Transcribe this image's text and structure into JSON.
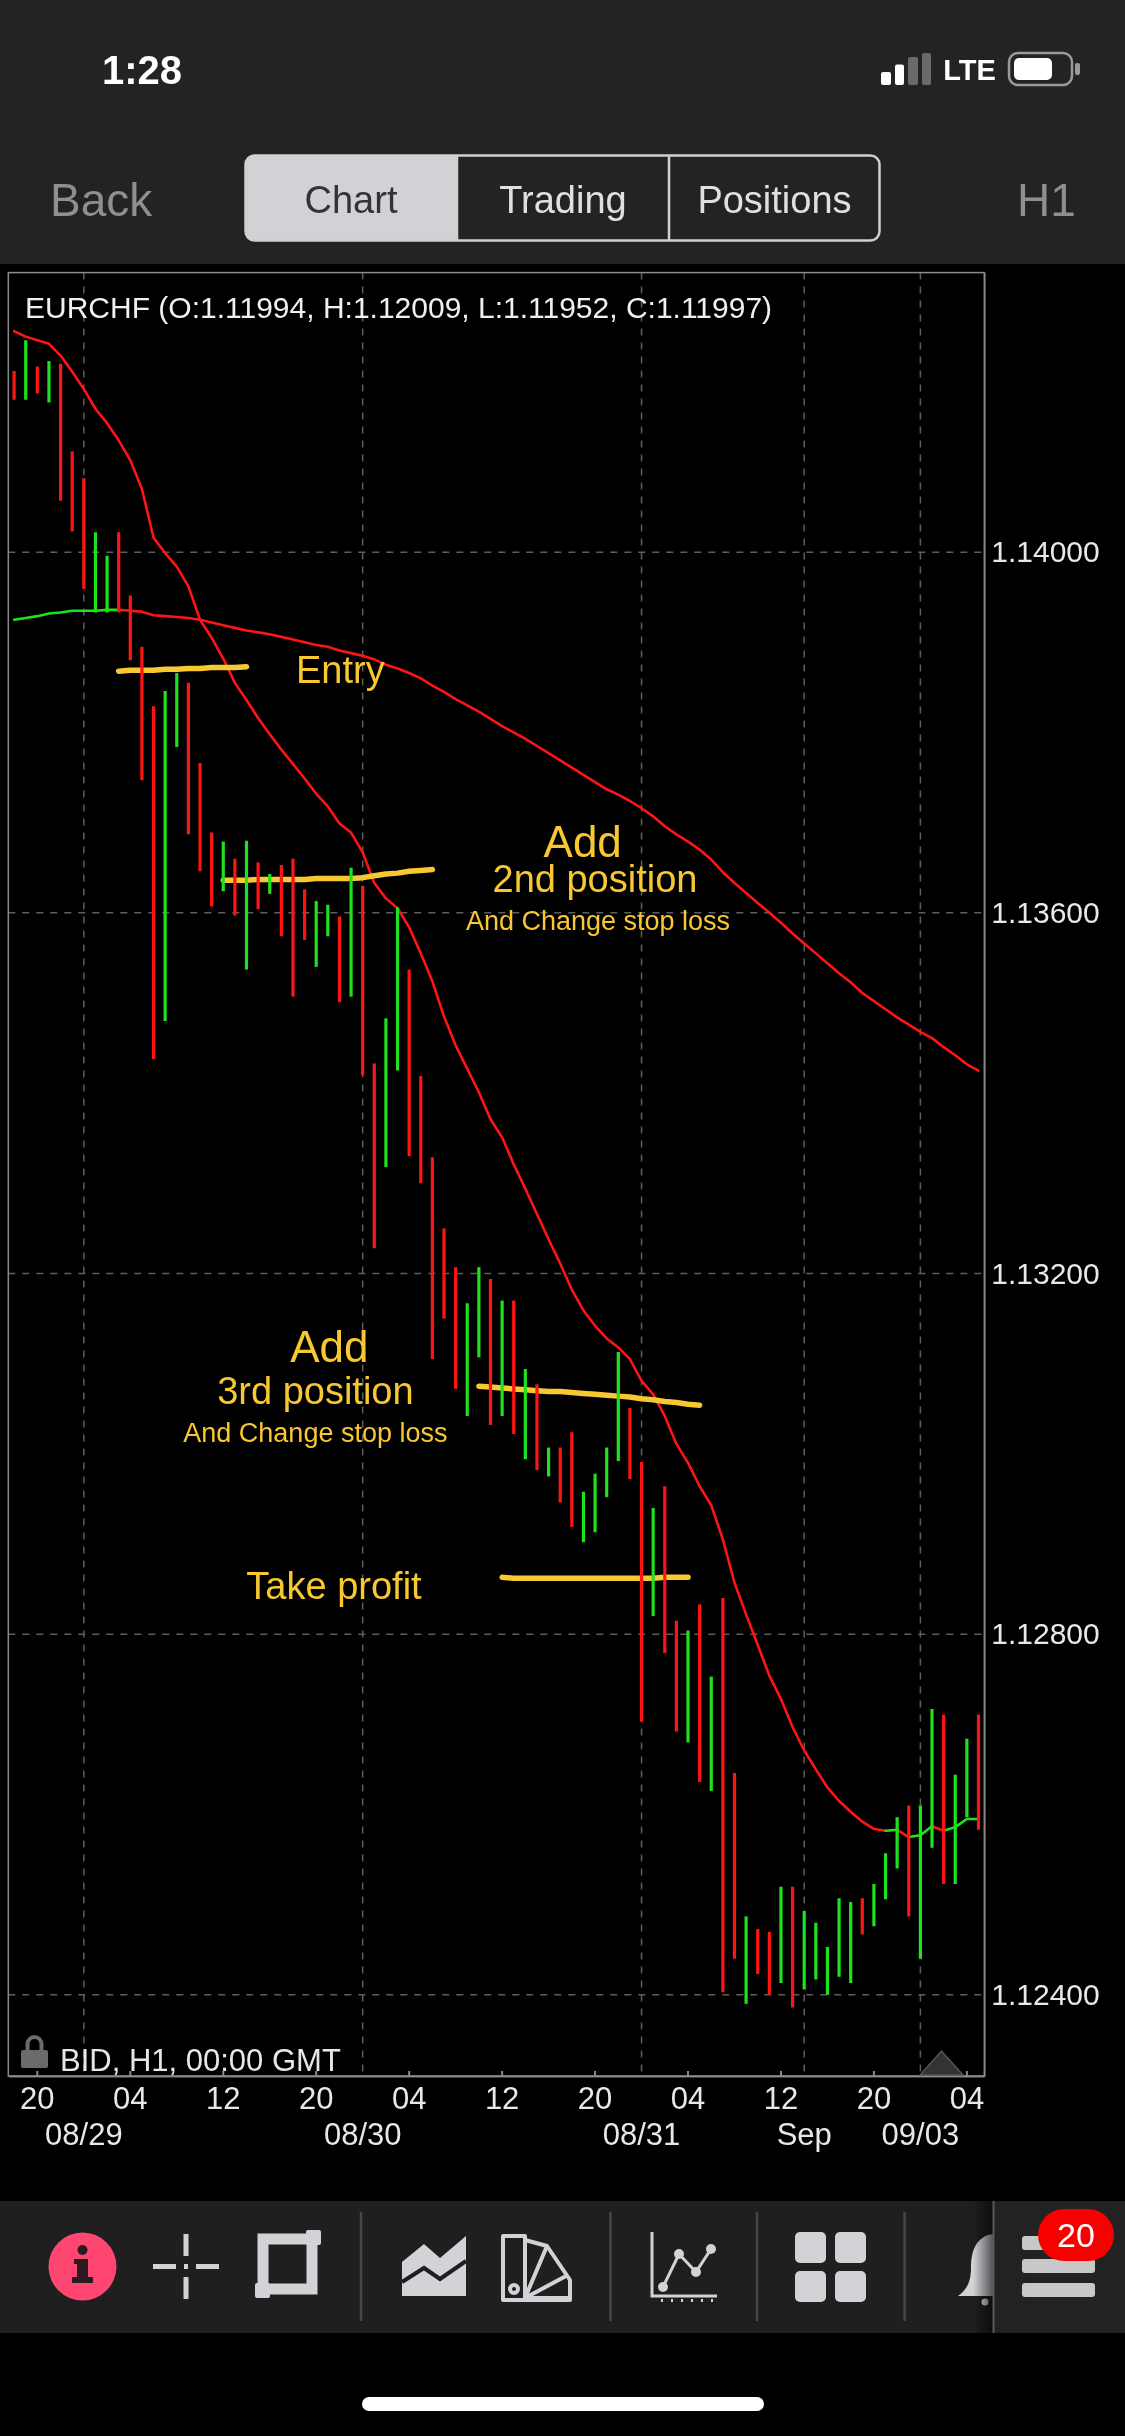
{
  "chart_data": {
    "type": "candlestick",
    "title": "EURCHF (O:1.11994, H:1.12009, L:1.11952, C:1.11997)",
    "categories": [
      null,
      null,
      "20",
      null,
      null,
      null,
      "08/29",
      null,
      null,
      null,
      "04",
      null,
      null,
      null,
      null,
      null,
      null,
      null,
      "12",
      null,
      null,
      null,
      null,
      null,
      null,
      null,
      "20",
      null,
      null,
      null,
      "08/30",
      null,
      null,
      null,
      "04",
      null,
      null,
      null,
      null,
      null,
      null,
      null,
      "12",
      null,
      null,
      null,
      null,
      null,
      null,
      null,
      "20",
      null,
      null,
      null,
      "08/31",
      null,
      null,
      null,
      "04",
      null,
      null,
      null,
      null,
      null,
      null,
      null,
      "12",
      null,
      "Sep",
      null,
      null,
      null,
      null,
      null,
      "20",
      null,
      null,
      null,
      "09/03",
      null,
      null,
      null,
      "04",
      null
    ],
    "ohlc": [
      [
        1.14201,
        1.14201,
        1.14169,
        1.14169
      ],
      [
        1.14169,
        1.14235,
        1.14169,
        1.14235
      ],
      [
        1.14206,
        1.14206,
        1.14176,
        1.14176
      ],
      [
        1.14166,
        1.14212,
        1.14166,
        1.14212
      ],
      [
        1.14209,
        1.14209,
        1.14057,
        1.14057
      ],
      [
        1.14112,
        1.14112,
        1.14023,
        1.14023
      ],
      [
        1.14082,
        1.14082,
        1.13959,
        1.13959
      ],
      [
        1.13933,
        1.14022,
        1.13933,
        1.14022
      ],
      [
        1.13933,
        1.13996,
        1.13933,
        1.13996
      ],
      [
        1.14022,
        1.14022,
        1.13933,
        1.13933
      ],
      [
        1.13952,
        1.13952,
        1.1388,
        1.1388
      ],
      [
        1.13895,
        1.13895,
        1.13747,
        1.13747
      ],
      [
        1.13829,
        1.13829,
        1.13438,
        1.13438
      ],
      [
        1.1348,
        1.13846,
        1.1348,
        1.13846
      ],
      [
        1.13784,
        1.13866,
        1.13784,
        1.13866
      ],
      [
        1.13855,
        1.13855,
        1.13687,
        1.13687
      ],
      [
        1.13766,
        1.13766,
        1.13646,
        1.13646
      ],
      [
        1.13689,
        1.13689,
        1.13607,
        1.13607
      ],
      [
        1.13624,
        1.13679,
        1.13624,
        1.13679
      ],
      [
        1.1366,
        1.1366,
        1.13597,
        1.13597
      ],
      [
        1.13537,
        1.1368,
        1.13537,
        1.1368
      ],
      [
        1.13656,
        1.13656,
        1.13604,
        1.13604
      ],
      [
        1.13621,
        1.13643,
        1.13621,
        1.13643
      ],
      [
        1.13653,
        1.13653,
        1.13574,
        1.13574
      ],
      [
        1.1366,
        1.1366,
        1.13507,
        1.13507
      ],
      [
        1.13626,
        1.13626,
        1.1357,
        1.1357
      ],
      [
        1.1354,
        1.13613,
        1.1354,
        1.13613
      ],
      [
        1.13574,
        1.13609,
        1.13574,
        1.13609
      ],
      [
        1.13596,
        1.13596,
        1.13501,
        1.13501
      ],
      [
        1.13507,
        1.1365,
        1.13507,
        1.1365
      ],
      [
        1.1363,
        1.1363,
        1.1342,
        1.1342
      ],
      [
        1.13433,
        1.13433,
        1.13228,
        1.13228
      ],
      [
        1.13318,
        1.13483,
        1.13318,
        1.13483
      ],
      [
        1.13425,
        1.13606,
        1.13425,
        1.13606
      ],
      [
        1.13537,
        1.13537,
        1.1333,
        1.1333
      ],
      [
        1.13419,
        1.13419,
        1.133,
        1.133
      ],
      [
        1.13329,
        1.13329,
        1.13105,
        1.13105
      ],
      [
        1.1325,
        1.1325,
        1.1315,
        1.1315
      ],
      [
        1.13207,
        1.13207,
        1.13072,
        1.13072
      ],
      [
        1.13042,
        1.13167,
        1.13042,
        1.13167
      ],
      [
        1.13107,
        1.13207,
        1.13107,
        1.13207
      ],
      [
        1.13194,
        1.13194,
        1.13032,
        1.13032
      ],
      [
        1.13042,
        1.1317,
        1.13042,
        1.1317
      ],
      [
        1.1317,
        1.1317,
        1.13022,
        1.13022
      ],
      [
        1.12994,
        1.13094,
        1.12994,
        1.13094
      ],
      [
        1.13077,
        1.13077,
        1.12982,
        1.12982
      ],
      [
        1.12975,
        1.13007,
        1.12975,
        1.13007
      ],
      [
        1.13007,
        1.13007,
        1.12946,
        1.12946
      ],
      [
        1.13024,
        1.13024,
        1.12919,
        1.12919
      ],
      [
        1.12902,
        1.12958,
        1.12902,
        1.12958
      ],
      [
        1.12913,
        1.12978,
        1.12913,
        1.12978
      ],
      [
        1.12952,
        1.13007,
        1.12952,
        1.13007
      ],
      [
        1.12992,
        1.13113,
        1.12992,
        1.13113
      ],
      [
        1.13051,
        1.13051,
        1.12972,
        1.12972
      ],
      [
        1.12991,
        1.12991,
        1.12703,
        1.12703
      ],
      [
        1.1282,
        1.1294,
        1.1282,
        1.1294
      ],
      [
        1.12964,
        1.12964,
        1.12779,
        1.12779
      ],
      [
        1.12815,
        1.12815,
        1.12692,
        1.12692
      ],
      [
        1.1268,
        1.12804,
        1.1268,
        1.12804
      ],
      [
        1.12833,
        1.12833,
        1.12636,
        1.12636
      ],
      [
        1.12626,
        1.12753,
        1.12626,
        1.12753
      ],
      [
        1.1284,
        1.1284,
        1.12403,
        1.12403
      ],
      [
        1.12646,
        1.12646,
        1.1244,
        1.1244
      ],
      [
        1.1239,
        1.12487,
        1.1239,
        1.12487
      ],
      [
        1.12473,
        1.12473,
        1.12423,
        1.12423
      ],
      [
        1.1247,
        1.1247,
        1.124,
        1.124
      ],
      [
        1.12413,
        1.1252,
        1.12413,
        1.1252
      ],
      [
        1.1252,
        1.1252,
        1.12386,
        1.12386
      ],
      [
        1.12406,
        1.12493,
        1.12406,
        1.12493
      ],
      [
        1.12417,
        1.1248,
        1.12417,
        1.1248
      ],
      [
        1.124,
        1.12453,
        1.124,
        1.12453
      ],
      [
        1.1242,
        1.12507,
        1.1242,
        1.12507
      ],
      [
        1.12413,
        1.12503,
        1.12413,
        1.12503
      ],
      [
        1.12507,
        1.12507,
        1.12467,
        1.12467
      ],
      [
        1.12476,
        1.12523,
        1.12476,
        1.12523
      ],
      [
        1.12506,
        1.12557,
        1.12506,
        1.12557
      ],
      [
        1.1254,
        1.12597,
        1.1254,
        1.12597
      ],
      [
        1.1261,
        1.1261,
        1.12487,
        1.12487
      ],
      [
        1.1244,
        1.1261,
        1.1244,
        1.1261
      ],
      [
        1.12563,
        1.12717,
        1.12563,
        1.12717
      ],
      [
        1.12711,
        1.12711,
        1.12523,
        1.12523
      ],
      [
        1.12523,
        1.12644,
        1.12523,
        1.12644
      ],
      [
        1.12597,
        1.12684,
        1.12597,
        1.12684
      ],
      [
        1.12711,
        1.12711,
        1.12583,
        1.12583
      ]
    ],
    "colors": [
      "#ff1414",
      "#1ee21e",
      "#ff1414",
      "#1ee21e",
      "#ff1414",
      "#ff1414",
      "#ff1414",
      "#1ee21e",
      "#1ee21e",
      "#ff1414",
      "#ff1414",
      "#ff1414",
      "#ff1414",
      "#1ee21e",
      "#1ee21e",
      "#ff1414",
      "#ff1414",
      "#ff1414",
      "#1ee21e",
      "#ff1414",
      "#1ee21e",
      "#ff1414",
      "#1ee21e",
      "#ff1414",
      "#ff1414",
      "#ff1414",
      "#1ee21e",
      "#1ee21e",
      "#ff1414",
      "#1ee21e",
      "#ff1414",
      "#ff1414",
      "#1ee21e",
      "#1ee21e",
      "#ff1414",
      "#ff1414",
      "#ff1414",
      "#ff1414",
      "#ff1414",
      "#1ee21e",
      "#1ee21e",
      "#ff1414",
      "#1ee21e",
      "#ff1414",
      "#1ee21e",
      "#ff1414",
      "#1ee21e",
      "#ff1414",
      "#ff1414",
      "#1ee21e",
      "#1ee21e",
      "#1ee21e",
      "#1ee21e",
      "#ff1414",
      "#ff1414",
      "#1ee21e",
      "#ff1414",
      "#ff1414",
      "#1ee21e",
      "#ff1414",
      "#1ee21e",
      "#ff1414",
      "#ff1414",
      "#1ee21e",
      "#ff1414",
      "#ff1414",
      "#1ee21e",
      "#ff1414",
      "#1ee21e",
      "#1ee21e",
      "#1ee21e",
      "#1ee21e",
      "#1ee21e",
      "#ff1414",
      "#1ee21e",
      "#1ee21e",
      "#1ee21e",
      "#ff1414",
      "#1ee21e",
      "#1ee21e",
      "#ff1414",
      "#1ee21e",
      "#1ee21e",
      "#ff1414"
    ],
    "series": [
      {
        "type": "line",
        "color": "#ff1414",
        "values": [
          1.14245,
          1.14239,
          1.14235,
          1.14231,
          1.14218,
          1.142,
          1.14181,
          1.14159,
          1.14143,
          1.14124,
          1.14102,
          1.1407,
          1.14016,
          1.13999,
          1.13984,
          1.13962,
          1.13925,
          1.13905,
          1.13882,
          1.13855,
          1.13836,
          1.13816,
          1.13798,
          1.13781,
          1.13765,
          1.13749,
          1.13732,
          1.13718,
          1.13699,
          1.13689,
          1.13667,
          1.13633,
          1.13616,
          1.13605,
          1.13584,
          1.13555,
          1.13524,
          1.13485,
          1.13453,
          1.13427,
          1.13401,
          1.13371,
          1.13351,
          1.13321,
          1.13294,
          1.13266,
          1.13238,
          1.13211,
          1.13182,
          1.13159,
          1.13142,
          1.13128,
          1.13118,
          1.13105,
          1.13081,
          1.13066,
          1.13042,
          1.13011,
          1.1299,
          1.12964,
          1.12943,
          1.12905,
          1.12857,
          1.12822,
          1.12788,
          1.12754,
          1.12728,
          1.12697,
          1.12671,
          1.1265,
          1.1263,
          1.12615,
          1.12603,
          1.12592,
          1.12584,
          1.12582,
          null,
          null,
          null,
          null,
          null,
          null,
          null,
          null
        ]
      },
      {
        "type": "line",
        "color": "#1ee21e",
        "values": [
          null,
          null,
          null,
          null,
          null,
          null,
          null,
          null,
          null,
          null,
          null,
          null,
          null,
          null,
          null,
          null,
          null,
          null,
          null,
          null,
          null,
          null,
          null,
          null,
          null,
          null,
          null,
          null,
          null,
          null,
          null,
          null,
          null,
          null,
          null,
          null,
          null,
          null,
          null,
          null,
          null,
          null,
          null,
          null,
          null,
          null,
          null,
          null,
          null,
          null,
          null,
          null,
          null,
          null,
          null,
          null,
          null,
          null,
          null,
          null,
          null,
          null,
          null,
          null,
          null,
          null,
          null,
          null,
          null,
          null,
          null,
          null,
          null,
          null,
          null,
          1.12582,
          1.12583,
          null,
          null,
          null,
          null,
          null,
          null,
          null
        ]
      },
      {
        "type": "line",
        "color": "#ff1414",
        "values": [
          null,
          null,
          null,
          null,
          null,
          null,
          null,
          null,
          null,
          null,
          null,
          null,
          null,
          null,
          null,
          null,
          null,
          null,
          null,
          null,
          null,
          null,
          null,
          null,
          null,
          null,
          null,
          null,
          null,
          null,
          null,
          null,
          null,
          null,
          null,
          null,
          null,
          null,
          null,
          null,
          null,
          null,
          null,
          null,
          null,
          null,
          null,
          null,
          null,
          null,
          null,
          null,
          null,
          null,
          null,
          null,
          null,
          null,
          null,
          null,
          null,
          null,
          null,
          null,
          null,
          null,
          null,
          null,
          null,
          null,
          null,
          null,
          null,
          null,
          null,
          null,
          1.12583,
          1.12575,
          null,
          null,
          null,
          null,
          null,
          null
        ]
      },
      {
        "type": "line",
        "color": "#1ee21e",
        "values": [
          null,
          null,
          null,
          null,
          null,
          null,
          null,
          null,
          null,
          null,
          null,
          null,
          null,
          null,
          null,
          null,
          null,
          null,
          null,
          null,
          null,
          null,
          null,
          null,
          null,
          null,
          null,
          null,
          null,
          null,
          null,
          null,
          null,
          null,
          null,
          null,
          null,
          null,
          null,
          null,
          null,
          null,
          null,
          null,
          null,
          null,
          null,
          null,
          null,
          null,
          null,
          null,
          null,
          null,
          null,
          null,
          null,
          null,
          null,
          null,
          null,
          null,
          null,
          null,
          null,
          null,
          null,
          null,
          null,
          null,
          null,
          null,
          null,
          null,
          null,
          null,
          null,
          1.12575,
          1.12577,
          1.12587,
          null,
          null,
          null,
          null
        ]
      },
      {
        "type": "line",
        "color": "#ff1414",
        "values": [
          null,
          null,
          null,
          null,
          null,
          null,
          null,
          null,
          null,
          null,
          null,
          null,
          null,
          null,
          null,
          null,
          null,
          null,
          null,
          null,
          null,
          null,
          null,
          null,
          null,
          null,
          null,
          null,
          null,
          null,
          null,
          null,
          null,
          null,
          null,
          null,
          null,
          null,
          null,
          null,
          null,
          null,
          null,
          null,
          null,
          null,
          null,
          null,
          null,
          null,
          null,
          null,
          null,
          null,
          null,
          null,
          null,
          null,
          null,
          null,
          null,
          null,
          null,
          null,
          null,
          null,
          null,
          null,
          null,
          null,
          null,
          null,
          null,
          null,
          null,
          null,
          null,
          null,
          null,
          1.12587,
          1.12582,
          null,
          null,
          null
        ]
      },
      {
        "type": "line",
        "color": "#1ee21e",
        "values": [
          null,
          null,
          null,
          null,
          null,
          null,
          null,
          null,
          null,
          null,
          null,
          null,
          null,
          null,
          null,
          null,
          null,
          null,
          null,
          null,
          null,
          null,
          null,
          null,
          null,
          null,
          null,
          null,
          null,
          null,
          null,
          null,
          null,
          null,
          null,
          null,
          null,
          null,
          null,
          null,
          null,
          null,
          null,
          null,
          null,
          null,
          null,
          null,
          null,
          null,
          null,
          null,
          null,
          null,
          null,
          null,
          null,
          null,
          null,
          null,
          null,
          null,
          null,
          null,
          null,
          null,
          null,
          null,
          null,
          null,
          null,
          null,
          null,
          null,
          null,
          null,
          null,
          null,
          null,
          null,
          1.12582,
          1.12586,
          1.12595,
          1.12595
        ]
      },
      {
        "type": "line",
        "color": "#1ee21e",
        "values": [
          1.13925,
          1.13927,
          1.13929,
          1.13932,
          1.13933,
          1.13935,
          1.13935,
          1.13935,
          1.13936,
          1.13936,
          null,
          null,
          null,
          null,
          null,
          null,
          null,
          null,
          null,
          null,
          null,
          null,
          null,
          null,
          null,
          null,
          null,
          null,
          null,
          null,
          null,
          null,
          null,
          null,
          null,
          null,
          null,
          null,
          null,
          null,
          null,
          null,
          null,
          null,
          null,
          null,
          null,
          null,
          null,
          null,
          null,
          null,
          null,
          null,
          null,
          null,
          null,
          null,
          null,
          null,
          null,
          null,
          null,
          null,
          null,
          null,
          null,
          null,
          null,
          null,
          null,
          null,
          null,
          null,
          null,
          null,
          null,
          null,
          null,
          null,
          null,
          null,
          null,
          null
        ]
      },
      {
        "type": "line",
        "color": "#ff1414",
        "values": [
          null,
          null,
          null,
          null,
          null,
          null,
          null,
          null,
          null,
          1.13936,
          1.13935,
          1.13934,
          1.1393,
          1.13929,
          1.13928,
          1.13927,
          1.13925,
          1.13922,
          1.13919,
          1.13916,
          1.13913,
          1.13911,
          1.13909,
          1.13906,
          1.13903,
          1.139,
          1.13897,
          1.13895,
          1.13891,
          1.13888,
          1.13885,
          1.13881,
          1.13875,
          1.13871,
          1.13866,
          1.1386,
          1.13852,
          1.13845,
          1.13837,
          1.1383,
          1.13823,
          1.13815,
          1.13807,
          1.138,
          1.13793,
          1.13785,
          1.13777,
          1.13769,
          1.13761,
          1.13753,
          1.13745,
          1.13737,
          1.13731,
          1.13724,
          1.13716,
          1.13707,
          1.13696,
          1.13687,
          1.13679,
          1.1367,
          1.13659,
          1.13645,
          1.13633,
          1.13622,
          1.13611,
          1.136,
          1.13589,
          1.13577,
          1.13566,
          1.13555,
          1.13544,
          1.13533,
          1.13523,
          1.13511,
          1.13502,
          1.13493,
          1.13484,
          1.13476,
          1.13468,
          1.13461,
          1.13451,
          1.13442,
          1.13432,
          1.13425
        ]
      },
      {
        "type": "line",
        "color": "#f8c830",
        "values": [
          null,
          null,
          null,
          null,
          null,
          null,
          null,
          null,
          null,
          1.13868,
          1.13869,
          1.13869,
          1.13869,
          1.1387,
          1.1387,
          1.13871,
          1.13871,
          1.13872,
          1.13872,
          1.13872,
          1.13873,
          null,
          null,
          null,
          null,
          null,
          null,
          null,
          null,
          null,
          null,
          null,
          null,
          null,
          null,
          null,
          null,
          null,
          null,
          null,
          null,
          null,
          null,
          null,
          null,
          null,
          null,
          null,
          null,
          null,
          null,
          null,
          null,
          null,
          null,
          null,
          null,
          null,
          null,
          null,
          null,
          null,
          null,
          null,
          null,
          null,
          null,
          null,
          null,
          null,
          null,
          null,
          null,
          null,
          null,
          null,
          null,
          null,
          null,
          null,
          null,
          null,
          null,
          null
        ]
      },
      {
        "type": "line",
        "color": "#f8c830",
        "values": [
          null,
          null,
          null,
          null,
          null,
          null,
          null,
          null,
          null,
          null,
          null,
          null,
          null,
          null,
          null,
          null,
          null,
          null,
          1.13636,
          1.13636,
          1.13636,
          1.13637,
          1.13637,
          1.13637,
          1.13637,
          1.13637,
          1.13638,
          1.13638,
          1.13638,
          1.13638,
          1.13639,
          1.13641,
          1.13643,
          1.13644,
          1.13646,
          1.13647,
          1.13648,
          null,
          null,
          null,
          null,
          null,
          null,
          null,
          null,
          null,
          null,
          null,
          null,
          null,
          null,
          null,
          null,
          null,
          null,
          null,
          null,
          null,
          null,
          null,
          null,
          null,
          null,
          null,
          null,
          null,
          null,
          null,
          null,
          null,
          null,
          null,
          null,
          null,
          null,
          null,
          null,
          null,
          null,
          null,
          null,
          null,
          null,
          null
        ]
      },
      {
        "type": "line",
        "color": "#f8c830",
        "values": [
          null,
          null,
          null,
          null,
          null,
          null,
          null,
          null,
          null,
          null,
          null,
          null,
          null,
          null,
          null,
          null,
          null,
          null,
          null,
          null,
          null,
          null,
          null,
          null,
          null,
          null,
          null,
          null,
          null,
          null,
          null,
          null,
          null,
          null,
          null,
          null,
          null,
          null,
          null,
          null,
          1.13075,
          1.13074,
          1.13073,
          1.13072,
          1.13071,
          1.1307,
          1.13069,
          1.13069,
          1.13068,
          1.13067,
          1.13066,
          1.13065,
          1.13064,
          1.13063,
          1.13061,
          1.1306,
          1.13058,
          1.13057,
          1.13055,
          1.13054,
          null,
          null,
          null,
          null,
          null,
          null,
          null,
          null,
          null,
          null,
          null,
          null,
          null,
          null,
          null,
          null,
          null,
          null,
          null,
          null,
          null,
          null,
          null,
          null
        ]
      },
      {
        "type": "line",
        "color": "#f8c830",
        "values": [
          null,
          null,
          null,
          null,
          null,
          null,
          null,
          null,
          null,
          null,
          null,
          null,
          null,
          null,
          null,
          null,
          null,
          null,
          null,
          null,
          null,
          null,
          null,
          null,
          null,
          null,
          null,
          null,
          null,
          null,
          null,
          null,
          null,
          null,
          null,
          null,
          null,
          null,
          null,
          null,
          null,
          null,
          1.12863,
          1.12862,
          1.12862,
          1.12862,
          1.12862,
          1.12862,
          1.12862,
          1.12862,
          1.12862,
          1.12862,
          1.12862,
          1.12862,
          1.12862,
          1.12862,
          1.12863,
          1.12863,
          1.12863,
          null,
          null,
          null,
          null,
          null,
          null,
          null,
          null,
          null,
          null,
          null,
          null,
          null,
          null,
          null,
          null,
          null,
          null,
          null,
          null,
          null,
          null,
          null,
          null,
          null
        ]
      }
    ],
    "ylim": [
      1.1231,
      1.1431
    ],
    "yticks": [
      {
        "value": 1.124,
        "label": "1.12400"
      },
      {
        "value": 1.128,
        "label": "1.12800"
      },
      {
        "value": 1.132,
        "label": "1.13200"
      },
      {
        "value": 1.136,
        "label": "1.13600"
      },
      {
        "value": 1.14,
        "label": "1.14000"
      }
    ],
    "grid": "y",
    "ref_lines": [
      {
        "axis": "x",
        "value": "08/29",
        "color": "#5e5e5e",
        "line_style": "dashed"
      },
      {
        "axis": "x",
        "value": "08/30",
        "color": "#5e5e5e",
        "line_style": "dashed"
      },
      {
        "axis": "x",
        "value": "08/31",
        "color": "#5e5e5e",
        "line_style": "dashed"
      },
      {
        "axis": "x",
        "value": "Sep",
        "color": "#5e5e5e",
        "line_style": "dashed"
      },
      {
        "axis": "x",
        "value": "09/03",
        "color": "#5e5e5e",
        "line_style": "dashed"
      }
    ],
    "annotations": [
      "Entry",
      "Add",
      "2nd position",
      "And Change stop loss",
      "Add",
      "3rd position",
      "And Change stop loss",
      "Take profit",
      "BID, H1, 00:00 GMT",
      "1:28",
      "LTE",
      "Back",
      "Chart",
      "Trading",
      "Positions",
      "H1",
      "20"
    ]
  }
}
